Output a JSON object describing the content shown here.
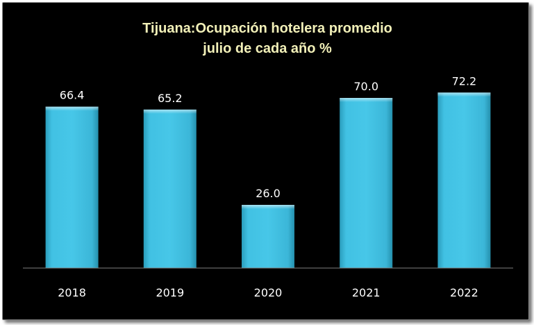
{
  "chart_data": {
    "type": "bar",
    "title_line1": "Tijuana:Ocupación hotelera promedio",
    "title_line2": "julio de cada año %",
    "categories": [
      "2018",
      "2019",
      "2020",
      "2021",
      "2022"
    ],
    "values": [
      66.4,
      65.2,
      26.0,
      70.0,
      72.2
    ],
    "value_labels": [
      "66.4",
      "65.2",
      "26.0",
      "70.0",
      "72.2"
    ],
    "xlabel": "",
    "ylabel": "",
    "ylim": [
      0,
      80
    ],
    "grid": false,
    "legend": "none",
    "colors": {
      "background": "#000000",
      "bar": "#3fc0e2",
      "title": "#f2f0b8",
      "text": "#ffffff",
      "axis": "#7f7f7f"
    }
  }
}
